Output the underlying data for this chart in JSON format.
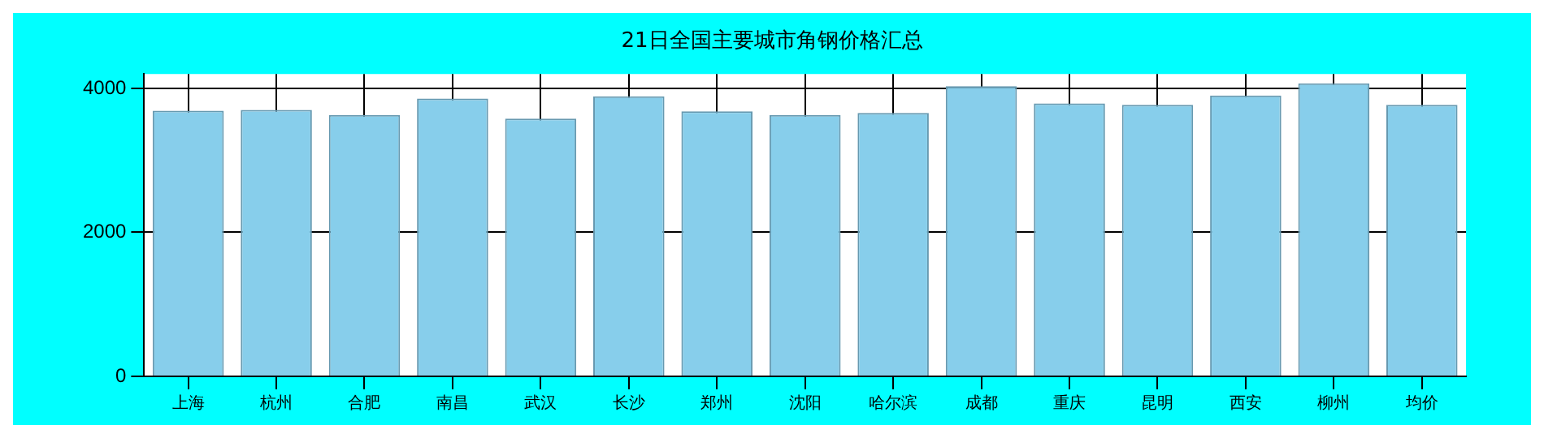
{
  "chart_data": {
    "type": "bar",
    "title": "21日全国主要城市角钢价格汇总",
    "categories": [
      "上海",
      "杭州",
      "合肥",
      "南昌",
      "武汉",
      "长沙",
      "郑州",
      "沈阳",
      "哈尔滨",
      "成都",
      "重庆",
      "昆明",
      "西安",
      "柳州",
      "均价"
    ],
    "values": [
      3690,
      3700,
      3630,
      3860,
      3580,
      3890,
      3680,
      3630,
      3660,
      4030,
      3790,
      3770,
      3900,
      4070,
      3770
    ],
    "color": "#87ceeb",
    "ylim": [
      0,
      4200
    ],
    "yticks": [
      0,
      2000,
      4000
    ],
    "grid": true
  }
}
